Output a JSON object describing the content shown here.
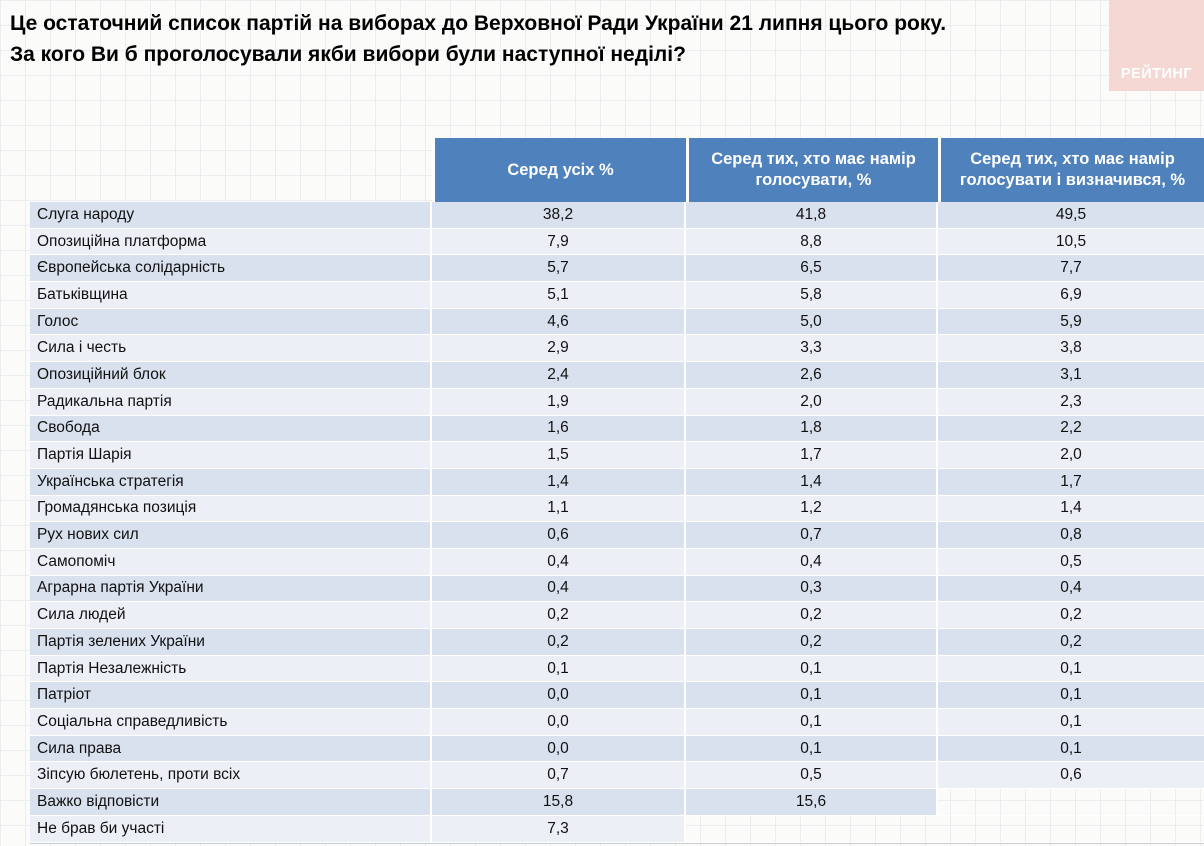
{
  "title": {
    "line1": "Це остаточний список партій на виборах до Верховної Ради України 21 липня цього року.",
    "line2": "За кого Ви б проголосували якби вибори були наступної неділі?"
  },
  "logo": {
    "text": "РЕЙТИНГ"
  },
  "colors": {
    "header_blue": "#4f81bd",
    "row_dark": "#d9e1ee",
    "row_light": "#ecf0f6",
    "logo_pink": "#f5d8d4"
  },
  "chart_data": {
    "type": "table",
    "title": "Це остаточний список партій на виборах до Верховної Ради України 21 липня цього року. За кого Ви б проголосували якби вибори були наступної неділі?",
    "columns": [
      "Серед усіх %",
      "Серед тих, хто має намір голосувати, %",
      "Серед тих, хто має намір голосувати і визначився, %"
    ],
    "rows": [
      {
        "party": "Слуга народу",
        "values": [
          "38,2",
          "41,8",
          "49,5"
        ]
      },
      {
        "party": "Опозиційна платформа",
        "values": [
          "7,9",
          "8,8",
          "10,5"
        ]
      },
      {
        "party": "Європейська солідарність",
        "values": [
          "5,7",
          "6,5",
          "7,7"
        ]
      },
      {
        "party": "Батьківщина",
        "values": [
          "5,1",
          "5,8",
          "6,9"
        ]
      },
      {
        "party": "Голос",
        "values": [
          "4,6",
          "5,0",
          "5,9"
        ]
      },
      {
        "party": "Сила і честь",
        "values": [
          "2,9",
          "3,3",
          "3,8"
        ]
      },
      {
        "party": "Опозиційний блок",
        "values": [
          "2,4",
          "2,6",
          "3,1"
        ]
      },
      {
        "party": "Радикальна партія",
        "values": [
          "1,9",
          "2,0",
          "2,3"
        ]
      },
      {
        "party": "Свобода",
        "values": [
          "1,6",
          "1,8",
          "2,2"
        ]
      },
      {
        "party": "Партія Шарія",
        "values": [
          "1,5",
          "1,7",
          "2,0"
        ]
      },
      {
        "party": "Українська стратегія",
        "values": [
          "1,4",
          "1,4",
          "1,7"
        ]
      },
      {
        "party": "Громадянська позиція",
        "values": [
          "1,1",
          "1,2",
          "1,4"
        ]
      },
      {
        "party": "Рух нових сил",
        "values": [
          "0,6",
          "0,7",
          "0,8"
        ]
      },
      {
        "party": "Самопоміч",
        "values": [
          "0,4",
          "0,4",
          "0,5"
        ]
      },
      {
        "party": "Аграрна партія України",
        "values": [
          "0,4",
          "0,3",
          "0,4"
        ]
      },
      {
        "party": "Сила людей",
        "values": [
          "0,2",
          "0,2",
          "0,2"
        ]
      },
      {
        "party": "Партія зелених України",
        "values": [
          "0,2",
          "0,2",
          "0,2"
        ]
      },
      {
        "party": "Партія Незалежність",
        "values": [
          "0,1",
          "0,1",
          "0,1"
        ]
      },
      {
        "party": "Патріот",
        "values": [
          "0,0",
          "0,1",
          "0,1"
        ]
      },
      {
        "party": "Соціальна справедливість",
        "values": [
          "0,0",
          "0,1",
          "0,1"
        ]
      },
      {
        "party": "Сила права",
        "values": [
          "0,0",
          "0,1",
          "0,1"
        ]
      },
      {
        "party": "Зіпсую бюлетень, проти всіх",
        "values": [
          "0,7",
          "0,5",
          "0,6"
        ]
      },
      {
        "party": "Важко відповісти",
        "values": [
          "15,8",
          "15,6",
          ""
        ]
      },
      {
        "party": "Не брав би участі",
        "values": [
          "7,3",
          "",
          ""
        ]
      }
    ]
  }
}
